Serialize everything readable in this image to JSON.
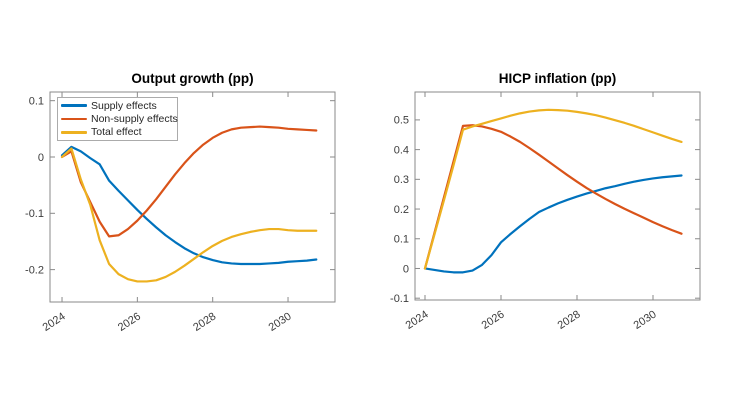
{
  "window": {
    "background": "#ffffff"
  },
  "palette": {
    "supply_blue": "#0072BD",
    "non_supply_orange": "#D95319",
    "total_yellow": "#EDB120",
    "axis_line": "#8a8a8a",
    "tick_label": "#3c3c3c",
    "title_text": "#000000"
  },
  "chart_data": [
    {
      "type": "line",
      "title": "Output growth (pp)",
      "xlabel": "",
      "ylabel": "",
      "grid": false,
      "legend_position": "top-left",
      "legend_visible": true,
      "xlim": [
        2023.681,
        2031.247
      ],
      "ylim": [
        -0.2575,
        0.1154
      ],
      "xticks": [
        2024,
        2026,
        2028,
        2030
      ],
      "yticks": [
        0.1,
        0,
        -0.1,
        -0.2
      ],
      "x": [
        2024,
        2024.25,
        2024.5,
        2024.75,
        2025,
        2025.25,
        2025.5,
        2025.75,
        2026,
        2026.25,
        2026.5,
        2026.75,
        2027,
        2027.25,
        2027.5,
        2027.75,
        2028,
        2028.25,
        2028.5,
        2028.75,
        2029,
        2029.25,
        2029.5,
        2029.75,
        2030,
        2030.25,
        2030.5,
        2030.75
      ],
      "series": [
        {
          "name": "Supply effects",
          "color": "#0072BD",
          "values": [
            0.003,
            0.018,
            0.01,
            -0.002,
            -0.013,
            -0.042,
            -0.06,
            -0.077,
            -0.094,
            -0.11,
            -0.125,
            -0.139,
            -0.151,
            -0.162,
            -0.171,
            -0.178,
            -0.183,
            -0.187,
            -0.189,
            -0.19,
            -0.19,
            -0.19,
            -0.189,
            -0.188,
            -0.186,
            -0.185,
            -0.184,
            -0.182
          ]
        },
        {
          "name": "Non-supply effects",
          "color": "#D95319",
          "values": [
            0,
            0.01,
            -0.045,
            -0.08,
            -0.115,
            -0.141,
            -0.139,
            -0.128,
            -0.113,
            -0.095,
            -0.075,
            -0.053,
            -0.031,
            -0.011,
            0.007,
            0.022,
            0.034,
            0.043,
            0.049,
            0.052,
            0.053,
            0.054,
            0.053,
            0.052,
            0.05,
            0.049,
            0.048,
            0.047
          ]
        },
        {
          "name": "Total effect",
          "color": "#EDB120",
          "values": [
            0,
            0.015,
            -0.04,
            -0.085,
            -0.148,
            -0.19,
            -0.208,
            -0.217,
            -0.221,
            -0.221,
            -0.219,
            -0.213,
            -0.204,
            -0.193,
            -0.181,
            -0.169,
            -0.158,
            -0.149,
            -0.142,
            -0.137,
            -0.133,
            -0.13,
            -0.128,
            -0.128,
            -0.13,
            -0.131,
            -0.131,
            -0.131
          ]
        }
      ]
    },
    {
      "type": "line",
      "title": "HICP inflation (pp)",
      "xlabel": "",
      "ylabel": "",
      "grid": false,
      "legend_position": "none",
      "legend_visible": false,
      "xlim": [
        2023.737,
        2031.237
      ],
      "ylim": [
        -0.1061,
        0.5939
      ],
      "xticks": [
        2024,
        2026,
        2028,
        2030
      ],
      "yticks": [
        0.5,
        0.4,
        0.3,
        0.2,
        0.1,
        0,
        -0.1
      ],
      "x": [
        2024,
        2024.25,
        2024.5,
        2024.75,
        2025,
        2025.25,
        2025.5,
        2025.75,
        2026,
        2026.25,
        2026.5,
        2026.75,
        2027,
        2027.25,
        2027.5,
        2027.75,
        2028,
        2028.25,
        2028.5,
        2028.75,
        2029,
        2029.25,
        2029.5,
        2029.75,
        2030,
        2030.25,
        2030.5,
        2030.75
      ],
      "series": [
        {
          "name": "Supply effects",
          "color": "#0072BD",
          "values": [
            0,
            -0.005,
            -0.01,
            -0.013,
            -0.013,
            -0.007,
            0.012,
            0.045,
            0.088,
            0.116,
            0.142,
            0.167,
            0.19,
            0.205,
            0.219,
            0.231,
            0.242,
            0.252,
            0.261,
            0.27,
            0.277,
            0.285,
            0.292,
            0.298,
            0.303,
            0.307,
            0.31,
            0.313
          ]
        },
        {
          "name": "Non-supply effects",
          "color": "#D95319",
          "values": [
            0,
            0.12,
            0.24,
            0.36,
            0.48,
            0.482,
            0.478,
            0.47,
            0.46,
            0.444,
            0.426,
            0.405,
            0.383,
            0.36,
            0.337,
            0.314,
            0.292,
            0.271,
            0.252,
            0.234,
            0.217,
            0.201,
            0.186,
            0.171,
            0.156,
            0.142,
            0.129,
            0.117
          ]
        },
        {
          "name": "Total effect",
          "color": "#EDB120",
          "values": [
            0,
            0.115,
            0.23,
            0.347,
            0.467,
            0.478,
            0.487,
            0.496,
            0.505,
            0.514,
            0.522,
            0.528,
            0.532,
            0.534,
            0.533,
            0.531,
            0.527,
            0.522,
            0.516,
            0.508,
            0.499,
            0.49,
            0.48,
            0.469,
            0.458,
            0.447,
            0.436,
            0.426
          ]
        }
      ]
    }
  ]
}
